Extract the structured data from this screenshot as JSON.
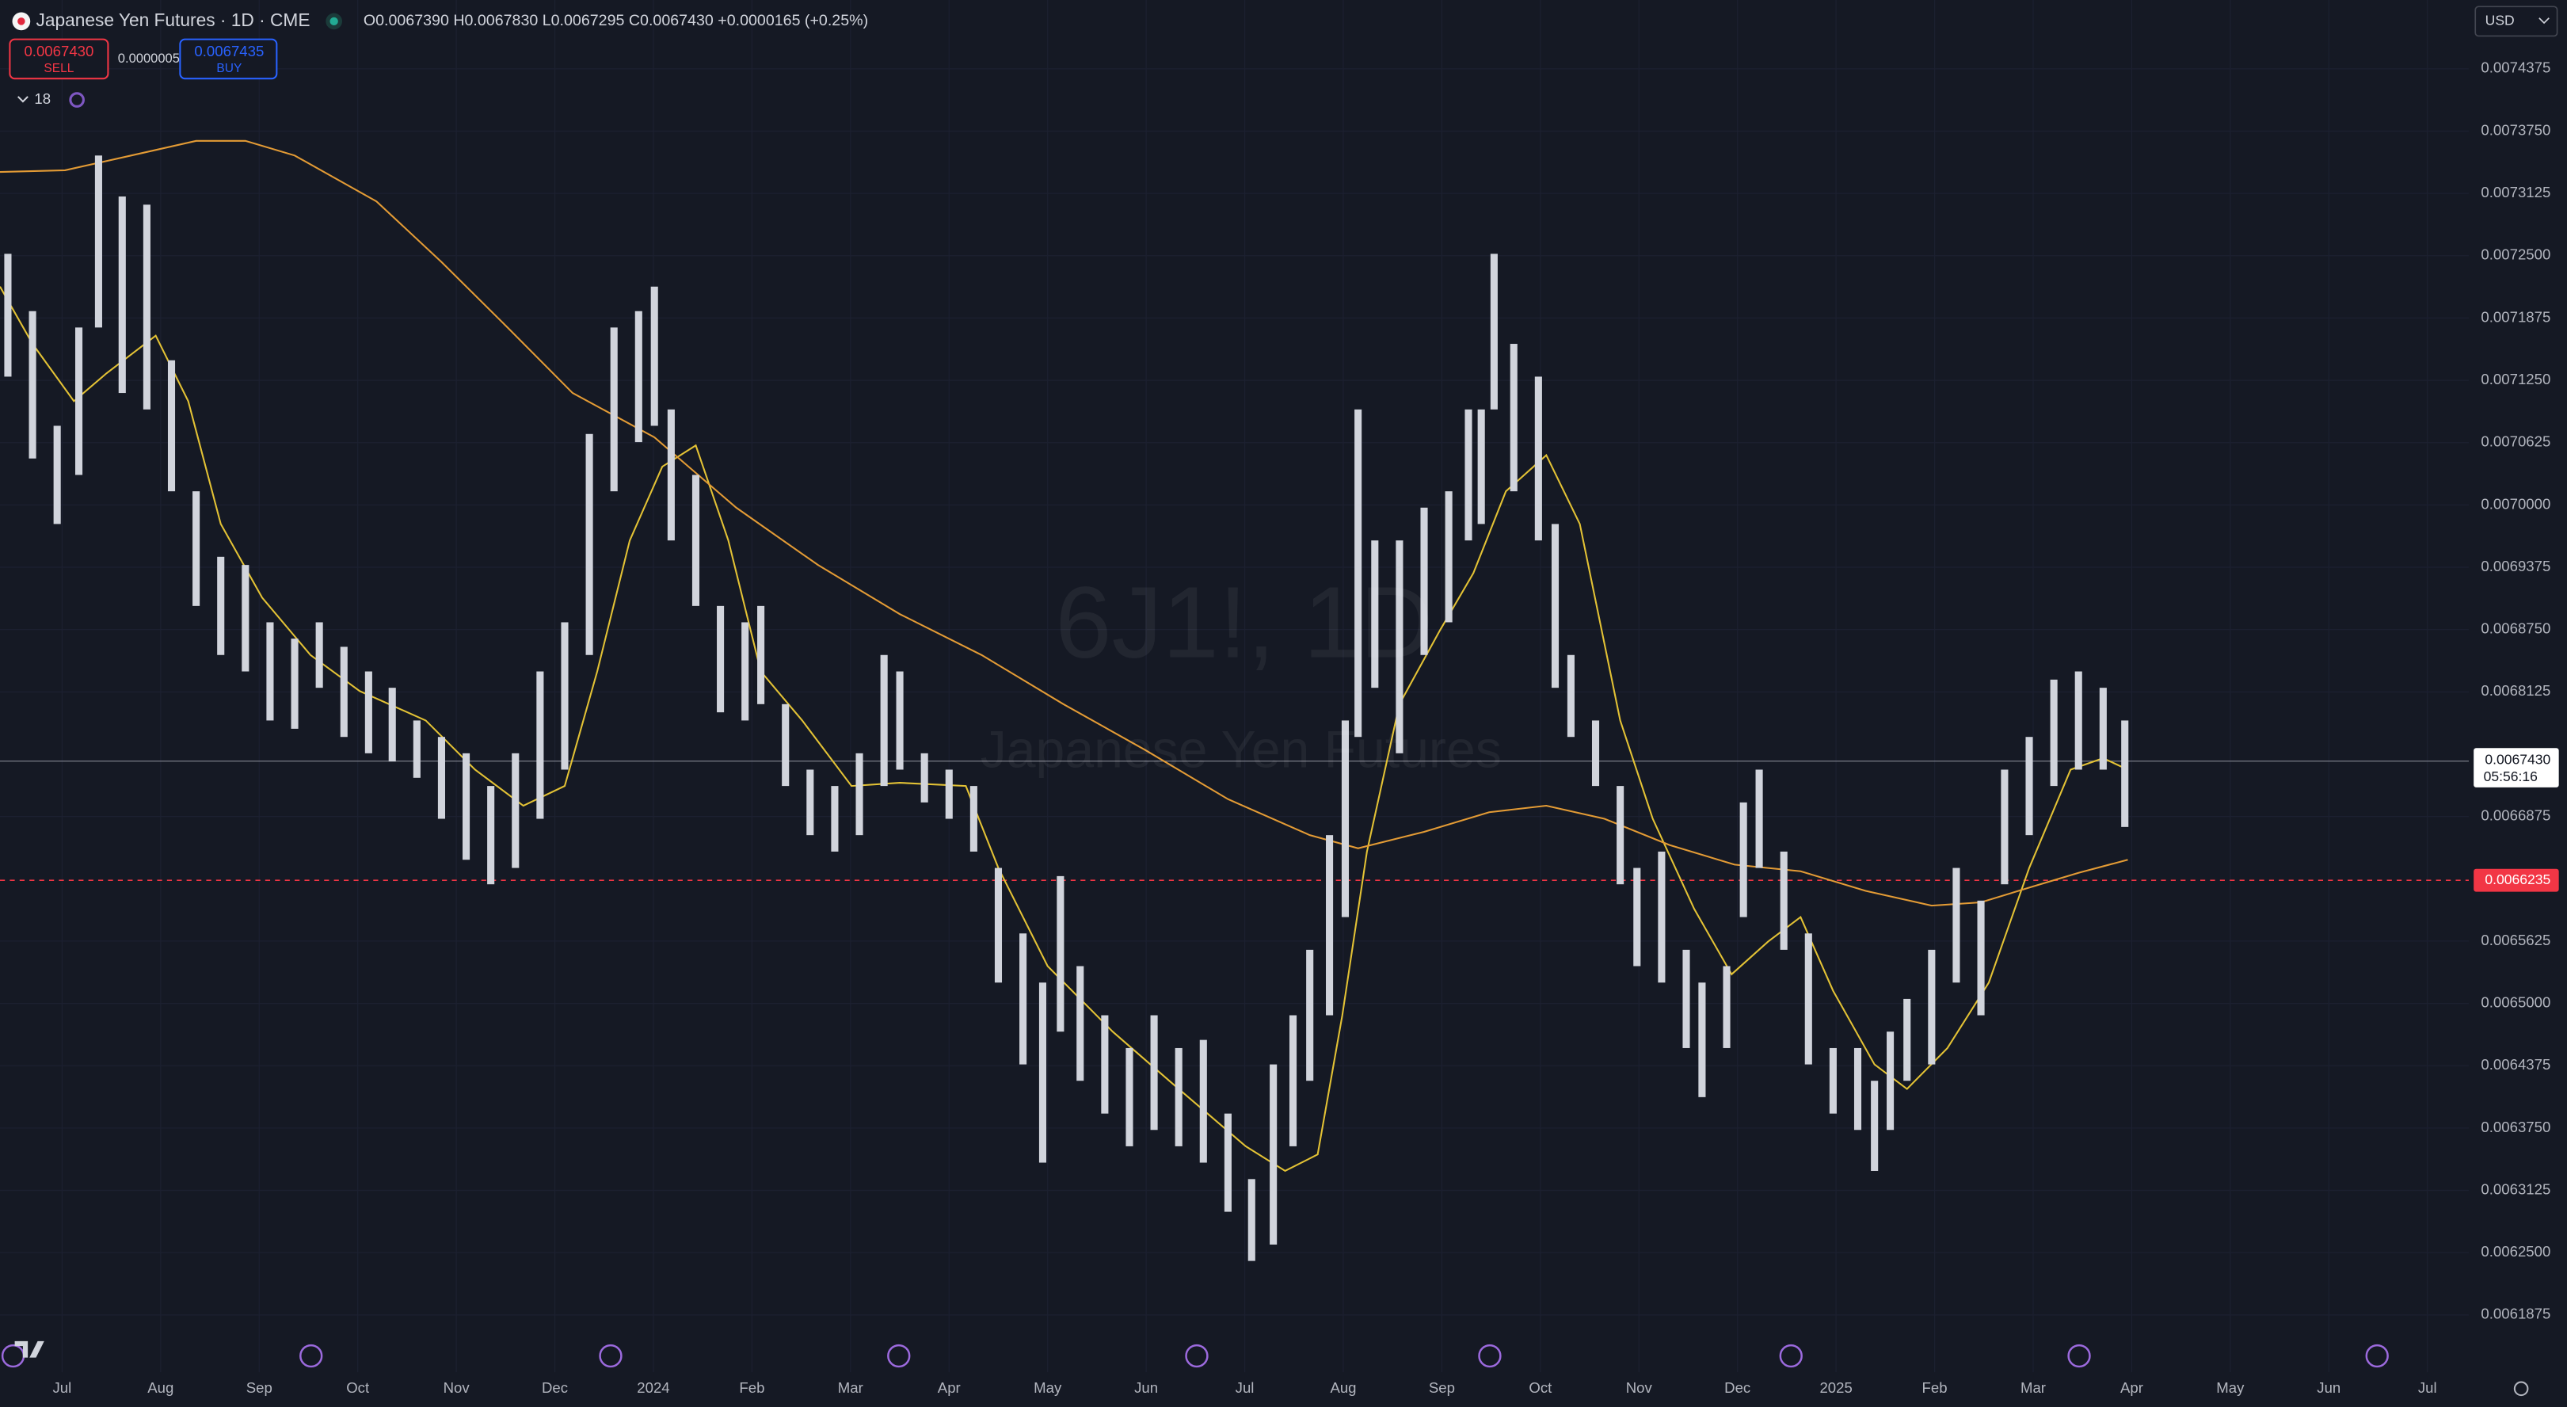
{
  "header": {
    "symbol": "Japanese Yen Futures · 1D · CME",
    "ohlc": "O0.0067390 H0.0067830 L0.0067295 C0.0067430 +0.0000165 (+0.25%)",
    "sell_price": "0.0067430",
    "sell": "SELL",
    "spread": "0.0000005",
    "buy_price": "0.0067435",
    "buy": "BUY",
    "indicators": "18",
    "watermark_symbol": "6J1!, 1D",
    "watermark_name": "Japanese Yen Futures",
    "currency": "USD"
  },
  "chart_data": {
    "type": "hilo",
    "color": "#d1d4dc",
    "grid": true,
    "xlim": [
      -0.63,
      24.42
    ],
    "ylim": [
      0.00613,
      0.0075065
    ],
    "xticks": [
      {
        "value": 0,
        "label": "Jul"
      },
      {
        "value": 1,
        "label": "Aug"
      },
      {
        "value": 2,
        "label": "Sep"
      },
      {
        "value": 3,
        "label": "Oct"
      },
      {
        "value": 4,
        "label": "Nov"
      },
      {
        "value": 5,
        "label": "Dec"
      },
      {
        "value": 6,
        "label": "2024"
      },
      {
        "value": 7,
        "label": "Feb"
      },
      {
        "value": 8,
        "label": "Mar"
      },
      {
        "value": 9,
        "label": "Apr"
      },
      {
        "value": 10,
        "label": "May"
      },
      {
        "value": 11,
        "label": "Jun"
      },
      {
        "value": 12,
        "label": "Jul"
      },
      {
        "value": 13,
        "label": "Aug"
      },
      {
        "value": 14,
        "label": "Sep"
      },
      {
        "value": 15,
        "label": "Oct"
      },
      {
        "value": 16,
        "label": "Nov"
      },
      {
        "value": 17,
        "label": "Dec"
      },
      {
        "value": 18,
        "label": "2025"
      },
      {
        "value": 19,
        "label": "Feb"
      },
      {
        "value": 20,
        "label": "Mar"
      },
      {
        "value": 21,
        "label": "Apr"
      },
      {
        "value": 22,
        "label": "May"
      },
      {
        "value": 23,
        "label": "Jun"
      },
      {
        "value": 24,
        "label": "Jul"
      }
    ],
    "yticks": [
      0.0061875,
      {
        "value": 0.00625,
        "label": "0.0062500"
      },
      0.0063125,
      {
        "value": 0.006375,
        "label": "0.0063750"
      },
      0.0064375,
      {
        "value": 0.0065,
        "label": "0.0065000"
      },
      0.0065625,
      0.0066875,
      0.0068125,
      {
        "value": 0.006875,
        "label": "0.0068750"
      },
      0.0069375,
      {
        "value": 0.007,
        "label": "0.0070000"
      },
      0.0070625,
      {
        "value": 0.007125,
        "label": "0.0071250"
      },
      0.0071875,
      {
        "value": 0.00725,
        "label": "0.0072500"
      },
      0.0073125,
      {
        "value": 0.007375,
        "label": "0.0073750"
      },
      0.0074375
    ],
    "x": [
      -0.55,
      -0.3,
      -0.05,
      0.17,
      0.37,
      0.61,
      0.86,
      1.11,
      1.36,
      1.61,
      1.86,
      2.11,
      2.36,
      2.61,
      2.86,
      3.11,
      3.35,
      3.6,
      3.85,
      4.1,
      4.35,
      4.6,
      4.85,
      5.1,
      5.35,
      5.6,
      5.85,
      6.01,
      6.18,
      6.43,
      6.68,
      6.93,
      7.09,
      7.34,
      7.59,
      7.84,
      8.09,
      8.34,
      8.5,
      8.75,
      9.0,
      9.25,
      9.5,
      9.75,
      9.95,
      10.13,
      10.33,
      10.58,
      10.83,
      11.08,
      11.33,
      11.58,
      11.83,
      12.07,
      12.29,
      12.49,
      12.66,
      12.86,
      13.02,
      13.15,
      13.32,
      13.57,
      13.82,
      14.07,
      14.27,
      14.4,
      14.53,
      14.73,
      14.98,
      15.15,
      15.31,
      15.56,
      15.81,
      15.98,
      16.23,
      16.48,
      16.64,
      16.89,
      17.06,
      17.22,
      17.47,
      17.72,
      17.97,
      18.22,
      18.39,
      18.55,
      18.72,
      18.97,
      19.22,
      19.47,
      19.71,
      19.96,
      20.21,
      20.46,
      20.71,
      20.93
    ],
    "high": [
      0.0072519,
      0.0071944,
      0.0070794,
      0.007178,
      0.0073505,
      0.0073094,
      0.0073012,
      0.0071451,
      0.0070137,
      0.006948,
      0.0069398,
      0.0068823,
      0.0068659,
      0.0068823,
      0.0068577,
      0.006833,
      0.0068166,
      0.0067838,
      0.0067673,
      0.0067509,
      0.0067181,
      0.0067509,
      0.006833,
      0.0068823,
      0.0070712,
      0.007178,
      0.0071944,
      0.007219,
      0.0070958,
      0.0070301,
      0.0068987,
      0.0068823,
      0.0068987,
      0.0068002,
      0.0067345,
      0.0067181,
      0.0067509,
      0.0068495,
      0.006833,
      0.0067509,
      0.0067345,
      0.0067181,
      0.0066359,
      0.0065702,
      0.0065209,
      0.0066277,
      0.0065374,
      0.0064881,
      0.0064552,
      0.0064881,
      0.0064552,
      0.0064634,
      0.0063895,
      0.0063238,
      0.0064388,
      0.0064881,
      0.0065538,
      0.0066688,
      0.0067838,
      0.0070958,
      0.0069644,
      0.0069644,
      0.0069973,
      0.0070137,
      0.0070958,
      0.0070958,
      0.0072519,
      0.0071616,
      0.0071287,
      0.0069809,
      0.0068495,
      0.0067838,
      0.0067181,
      0.0066359,
      0.0066523,
      0.0065538,
      0.0065209,
      0.0065374,
      0.0067016,
      0.0067345,
      0.0066523,
      0.0065702,
      0.0064552,
      0.0064552,
      0.0064224,
      0.0064717,
      0.0065045,
      0.0065538,
      0.0066359,
      0.0066031,
      0.0067345,
      0.0067673,
      0.0068248,
      0.006833,
      0.0068166,
      0.0067838
    ],
    "low": [
      0.0071287,
      0.0070466,
      0.0069809,
      0.0070301,
      0.007178,
      0.0071123,
      0.0070958,
      0.0070137,
      0.0068987,
      0.0068495,
      0.006833,
      0.0067838,
      0.0067755,
      0.0068166,
      0.0067673,
      0.0067509,
      0.0067427,
      0.0067263,
      0.0066852,
      0.0066441,
      0.0066195,
      0.0066359,
      0.0066852,
      0.0067345,
      0.0068495,
      0.0070137,
      0.007063,
      0.0070794,
      0.0069644,
      0.0068987,
      0.006792,
      0.0067838,
      0.0068002,
      0.0067181,
      0.0066688,
      0.0066523,
      0.0066688,
      0.0067181,
      0.0067345,
      0.0067016,
      0.0066852,
      0.0066523,
      0.0065209,
      0.0064388,
      0.0063403,
      0.0064717,
      0.0064224,
      0.0063895,
      0.0063567,
      0.0063731,
      0.0063567,
      0.0063403,
      0.006291,
      0.0062417,
      0.0062581,
      0.0063567,
      0.0064224,
      0.0064881,
      0.0065866,
      0.0067673,
      0.0068166,
      0.0067509,
      0.0068495,
      0.0068823,
      0.0069644,
      0.0069809,
      0.0070958,
      0.0070137,
      0.0069644,
      0.0068166,
      0.0067673,
      0.0067181,
      0.0066195,
      0.0065374,
      0.0065209,
      0.0064552,
      0.006406,
      0.0064552,
      0.0065866,
      0.0066359,
      0.0065538,
      0.0064388,
      0.0063895,
      0.0063731,
      0.006332,
      0.0063731,
      0.0064224,
      0.0064388,
      0.0065209,
      0.0064881,
      0.0066195,
      0.0066688,
      0.0067181,
      0.0067345,
      0.0067345,
      0.006677
    ],
    "overlays": [
      {
        "type": "line",
        "color": "#e3c235",
        "x": [
          -0.63,
          -0.3,
          0.12,
          0.45,
          0.95,
          1.28,
          1.61,
          2.03,
          2.52,
          3.02,
          3.69,
          4.19,
          4.68,
          5.1,
          5.43,
          5.76,
          6.09,
          6.43,
          6.76,
          7.09,
          7.51,
          8.01,
          8.5,
          9.17,
          9.5,
          10.0,
          10.66,
          11.33,
          12.01,
          12.41,
          12.74,
          12.99,
          13.24,
          13.57,
          13.98,
          14.32,
          14.65,
          15.06,
          15.4,
          15.81,
          16.14,
          16.56,
          16.94,
          17.31,
          17.64,
          17.97,
          18.39,
          18.72,
          19.13,
          19.55,
          19.96,
          20.38,
          20.71,
          20.96
        ],
        "values": [
          0.007219,
          0.0071616,
          0.0071041,
          0.007132,
          0.0071698,
          0.0071041,
          0.0069809,
          0.006907,
          0.0068495,
          0.0068133,
          0.0067838,
          0.0067345,
          0.0066983,
          0.0067181,
          0.006833,
          0.0069644,
          0.0070384,
          0.0070597,
          0.0069644,
          0.006833,
          0.0067838,
          0.0067181,
          0.0067213,
          0.0067181,
          0.0066359,
          0.0065374,
          0.0064717,
          0.0064142,
          0.0063567,
          0.006332,
          0.0063485,
          0.0064881,
          0.0066523,
          0.0068002,
          0.0068741,
          0.0069316,
          0.0070137,
          0.0070499,
          0.0069809,
          0.0067838,
          0.0066852,
          0.0065949,
          0.0065292,
          0.006562,
          0.0065866,
          0.0065127,
          0.0064388,
          0.0064142,
          0.0064552,
          0.0065209,
          0.0066359,
          0.0067345,
          0.006746,
          0.0067345
        ]
      },
      {
        "type": "line",
        "color": "#e39b35",
        "x": [
          -0.63,
          0.03,
          0.7,
          1.36,
          1.86,
          2.36,
          3.19,
          3.85,
          4.52,
          5.18,
          6.01,
          6.84,
          7.67,
          8.5,
          9.33,
          10.16,
          10.99,
          11.83,
          12.66,
          13.15,
          13.82,
          14.48,
          15.06,
          15.65,
          16.31,
          16.97,
          17.64,
          18.3,
          18.97,
          19.47,
          19.96,
          20.46,
          20.96
        ],
        "values": [
          0.007334,
          0.0073357,
          0.0073505,
          0.0073652,
          0.0073652,
          0.0073505,
          0.0073045,
          0.0072437,
          0.007178,
          0.0071123,
          0.0070679,
          0.0069973,
          0.0069398,
          0.0068905,
          0.0068495,
          0.0068002,
          0.0067542,
          0.0067049,
          0.0066688,
          0.0066556,
          0.0066721,
          0.0066918,
          0.0066983,
          0.0066852,
          0.0066589,
          0.0066392,
          0.0066326,
          0.0066129,
          0.0065981,
          0.0066014,
          0.0066162,
          0.006631,
          0.0066441
        ]
      }
    ],
    "last_price": {
      "value": 0.006743,
      "label": "0.0067430"
    },
    "countdown": "05:56:16",
    "alert_price": 0.0066235
  }
}
